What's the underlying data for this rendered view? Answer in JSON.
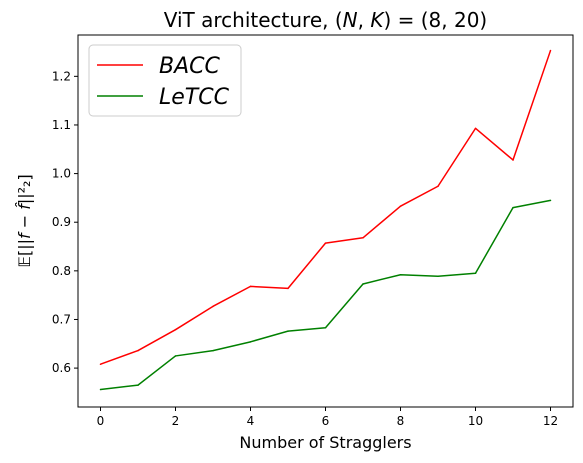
{
  "chart_data": {
    "type": "line",
    "title": "ViT architecture, (N, K) = (8, 20)",
    "xlabel": "Number of Stragglers",
    "ylabel": "𝔼[||f − f̂||²₂]",
    "x": [
      0,
      1,
      2,
      3,
      4,
      5,
      6,
      7,
      8,
      9,
      10,
      11,
      12
    ],
    "xlim": [
      -0.6,
      12.6
    ],
    "ylim": [
      0.52,
      1.285
    ],
    "xticks": [
      0,
      2,
      4,
      6,
      8,
      10,
      12
    ],
    "yticks": [
      0.6,
      0.7,
      0.8,
      0.9,
      1.0,
      1.1,
      1.2
    ],
    "ytick_labels": [
      "0.6",
      "0.7",
      "0.8",
      "0.9",
      "1.0",
      "1.1",
      "1.2"
    ],
    "grid": false,
    "legend_position": "top-left",
    "series": [
      {
        "name": "BACC",
        "color": "#ff0000",
        "values": [
          0.608,
          0.636,
          0.679,
          0.727,
          0.768,
          0.764,
          0.857,
          0.868,
          0.933,
          0.974,
          1.093,
          1.028,
          1.253
        ]
      },
      {
        "name": "LeTCC",
        "color": "#008000",
        "values": [
          0.556,
          0.565,
          0.625,
          0.636,
          0.654,
          0.676,
          0.683,
          0.773,
          0.792,
          0.789,
          0.795,
          0.93,
          0.945
        ]
      }
    ]
  }
}
